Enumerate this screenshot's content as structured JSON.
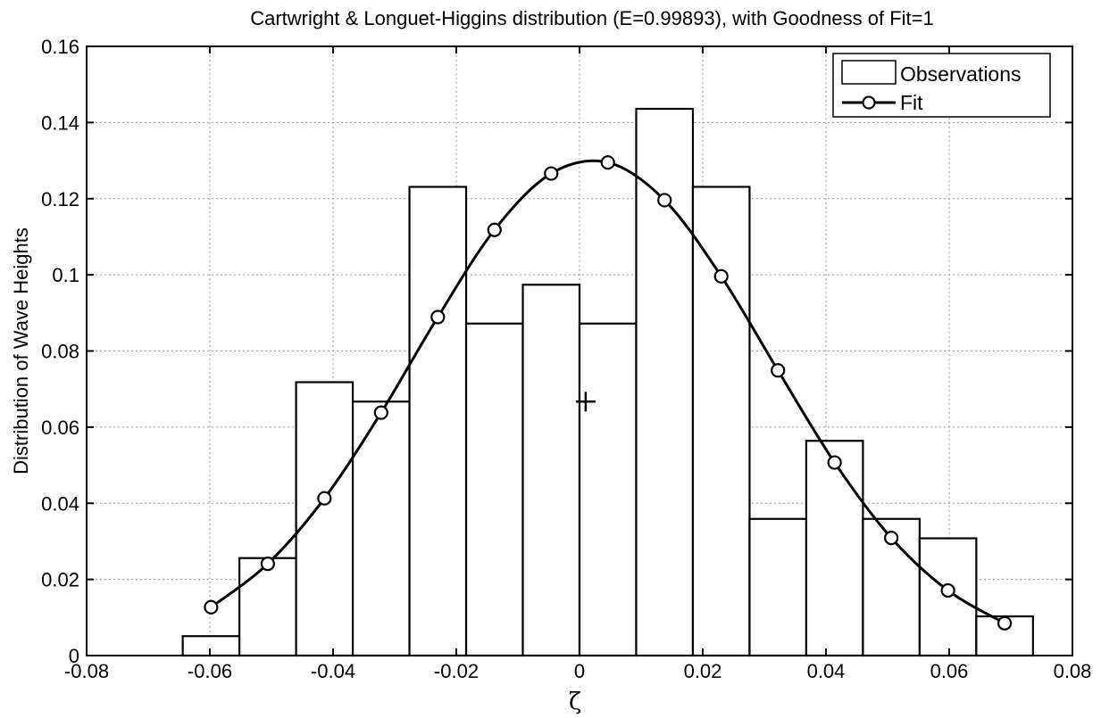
{
  "chart_data": {
    "type": "bar",
    "title": "Cartwright & Longuet-Higgins distribution (E=0.99893), with  Goodness of Fit=1",
    "xlabel": "ζ",
    "ylabel": "Distribution of Wave Heights",
    "xlim": [
      -0.08,
      0.08
    ],
    "ylim": [
      0,
      0.16
    ],
    "xticks": [
      -0.08,
      -0.06,
      -0.04,
      -0.02,
      0,
      0.02,
      0.04,
      0.06,
      0.08
    ],
    "xtick_labels": [
      "-0.08",
      "-0.06",
      "-0.04",
      "-0.02",
      "0",
      "0.02",
      "0.04",
      "0.06",
      "0.08"
    ],
    "yticks": [
      0,
      0.02,
      0.04,
      0.06,
      0.08,
      0.1,
      0.12,
      0.14,
      0.16
    ],
    "ytick_labels": [
      "0",
      "0.02",
      "0.04",
      "0.06",
      "0.08",
      "0.1",
      "0.12",
      "0.14",
      "0.16"
    ],
    "grid": true,
    "legend_position": "top-right",
    "series": [
      {
        "name": "Observations",
        "kind": "histogram",
        "bin_width": 0.0092,
        "x": [
          -0.0598,
          -0.0506,
          -0.0414,
          -0.0322,
          -0.023,
          -0.0138,
          -0.0046,
          0.0046,
          0.0138,
          0.023,
          0.0322,
          0.0414,
          0.0506,
          0.0598,
          0.069
        ],
        "values": [
          0.0051,
          0.0256,
          0.0718,
          0.0667,
          0.1231,
          0.0872,
          0.0974,
          0.0872,
          0.1436,
          0.1231,
          0.0359,
          0.0564,
          0.0359,
          0.0308,
          0.0103
        ]
      },
      {
        "name": "Fit",
        "kind": "line-marker",
        "x": [
          -0.0598,
          -0.0506,
          -0.0414,
          -0.0322,
          -0.023,
          -0.0138,
          -0.0046,
          0.0046,
          0.0138,
          0.023,
          0.0322,
          0.0414,
          0.0506,
          0.0598,
          0.069
        ],
        "values": [
          0.0127,
          0.0241,
          0.0413,
          0.0638,
          0.0889,
          0.1118,
          0.1266,
          0.1295,
          0.1196,
          0.0996,
          0.0749,
          0.0507,
          0.0309,
          0.0171,
          0.0085
        ]
      }
    ],
    "annotations": [
      {
        "marker": "+",
        "x": 0.001,
        "y": 0.0667
      }
    ]
  }
}
